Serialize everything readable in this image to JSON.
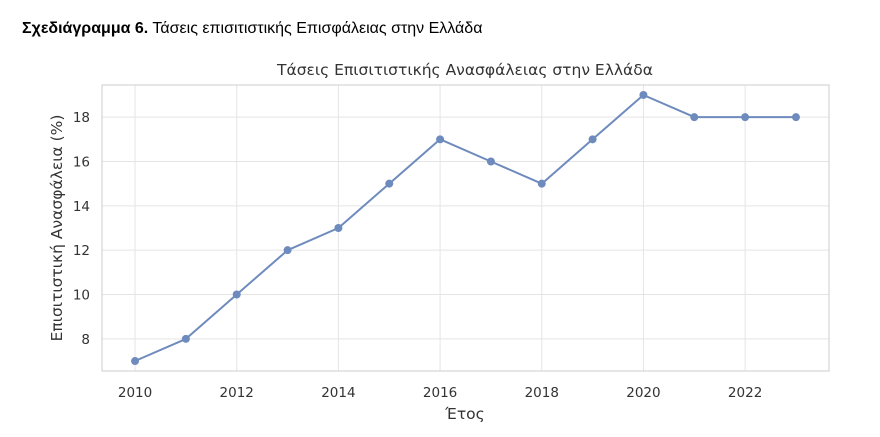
{
  "caption": {
    "label": "Σχεδιάγραμμα 6.",
    "text": "Τάσεις επισιτιστικής Επισφάλειας στην Ελλάδα"
  },
  "chart_data": {
    "type": "line",
    "title": "Τάσεις Επισιτιστικής Ανασφάλειας στην Ελλάδα",
    "xlabel": "Έτος",
    "ylabel": "Επισιτιστική Ανασφάλεια (%)",
    "x": [
      2010,
      2011,
      2012,
      2013,
      2014,
      2015,
      2016,
      2017,
      2018,
      2019,
      2020,
      2021,
      2022,
      2023
    ],
    "y": [
      7,
      8,
      10,
      12,
      13,
      15,
      17,
      16,
      15,
      17,
      19,
      18,
      18,
      18
    ],
    "xlim": [
      2009.35,
      2023.65
    ],
    "ylim": [
      6.55,
      19.45
    ],
    "xticks": [
      2010,
      2012,
      2014,
      2016,
      2018,
      2020,
      2022
    ],
    "yticks": [
      8,
      10,
      12,
      14,
      16,
      18
    ],
    "grid": true,
    "line_color": "#6e8bbd",
    "grid_color": "#e5e5e5",
    "frame_color": "#cccccc"
  }
}
